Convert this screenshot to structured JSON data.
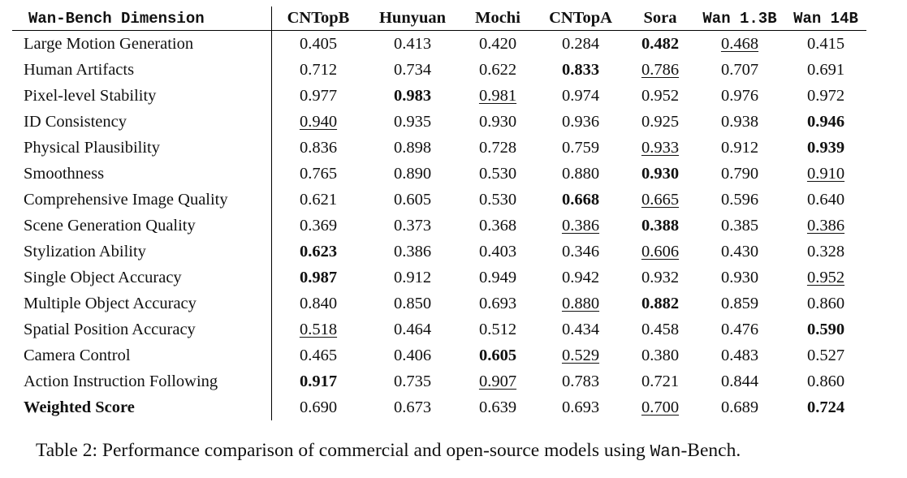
{
  "table": {
    "header": {
      "dimension": "Wan-Bench Dimension",
      "models": [
        "CNTopB",
        "Hunyuan",
        "Mochi",
        "CNTopA",
        "Sora",
        "Wan 1.3B",
        "Wan 14B"
      ]
    },
    "rows": [
      {
        "label": "Large Motion Generation",
        "values": [
          "0.405",
          "0.413",
          "0.420",
          "0.284",
          "0.482",
          "0.468",
          "0.415"
        ],
        "bold": [
          4
        ],
        "underline": [
          5
        ]
      },
      {
        "label": "Human Artifacts",
        "values": [
          "0.712",
          "0.734",
          "0.622",
          "0.833",
          "0.786",
          "0.707",
          "0.691"
        ],
        "bold": [
          3
        ],
        "underline": [
          4
        ]
      },
      {
        "label": "Pixel-level Stability",
        "values": [
          "0.977",
          "0.983",
          "0.981",
          "0.974",
          "0.952",
          "0.976",
          "0.972"
        ],
        "bold": [
          1
        ],
        "underline": [
          2
        ]
      },
      {
        "label": "ID Consistency",
        "values": [
          "0.940",
          "0.935",
          "0.930",
          "0.936",
          "0.925",
          "0.938",
          "0.946"
        ],
        "bold": [
          6
        ],
        "underline": [
          0
        ]
      },
      {
        "label": "Physical Plausibility",
        "values": [
          "0.836",
          "0.898",
          "0.728",
          "0.759",
          "0.933",
          "0.912",
          "0.939"
        ],
        "bold": [
          6
        ],
        "underline": [
          4
        ]
      },
      {
        "label": "Smoothness",
        "values": [
          "0.765",
          "0.890",
          "0.530",
          "0.880",
          "0.930",
          "0.790",
          "0.910"
        ],
        "bold": [
          4
        ],
        "underline": [
          6
        ]
      },
      {
        "label": "Comprehensive Image Quality",
        "values": [
          "0.621",
          "0.605",
          "0.530",
          "0.668",
          "0.665",
          "0.596",
          "0.640"
        ],
        "bold": [
          3
        ],
        "underline": [
          4
        ]
      },
      {
        "label": "Scene Generation Quality",
        "values": [
          "0.369",
          "0.373",
          "0.368",
          "0.386",
          "0.388",
          "0.385",
          "0.386"
        ],
        "bold": [
          4
        ],
        "underline": [
          3,
          6
        ]
      },
      {
        "label": "Stylization Ability",
        "values": [
          "0.623",
          "0.386",
          "0.403",
          "0.346",
          "0.606",
          "0.430",
          "0.328"
        ],
        "bold": [
          0
        ],
        "underline": [
          4
        ]
      },
      {
        "label": "Single Object Accuracy",
        "values": [
          "0.987",
          "0.912",
          "0.949",
          "0.942",
          "0.932",
          "0.930",
          "0.952"
        ],
        "bold": [
          0
        ],
        "underline": [
          6
        ]
      },
      {
        "label": "Multiple Object Accuracy",
        "values": [
          "0.840",
          "0.850",
          "0.693",
          "0.880",
          "0.882",
          "0.859",
          "0.860"
        ],
        "bold": [
          4
        ],
        "underline": [
          3
        ]
      },
      {
        "label": "Spatial Position Accuracy",
        "values": [
          "0.518",
          "0.464",
          "0.512",
          "0.434",
          "0.458",
          "0.476",
          "0.590"
        ],
        "bold": [
          6
        ],
        "underline": [
          0
        ]
      },
      {
        "label": "Camera Control",
        "values": [
          "0.465",
          "0.406",
          "0.605",
          "0.529",
          "0.380",
          "0.483",
          "0.527"
        ],
        "bold": [
          2
        ],
        "underline": [
          3
        ]
      },
      {
        "label": "Action Instruction Following",
        "values": [
          "0.917",
          "0.735",
          "0.907",
          "0.783",
          "0.721",
          "0.844",
          "0.860"
        ],
        "bold": [
          0
        ],
        "underline": [
          2
        ]
      },
      {
        "label": "Weighted Score",
        "values": [
          "0.690",
          "0.673",
          "0.639",
          "0.693",
          "0.700",
          "0.689",
          "0.724"
        ],
        "bold": [
          6
        ],
        "underline": [
          4
        ],
        "label_bold": true
      }
    ]
  },
  "caption": {
    "prefix": "Table 2: Performance comparison of commercial and open-source models using ",
    "mono": "Wan",
    "suffix": "-Bench."
  }
}
